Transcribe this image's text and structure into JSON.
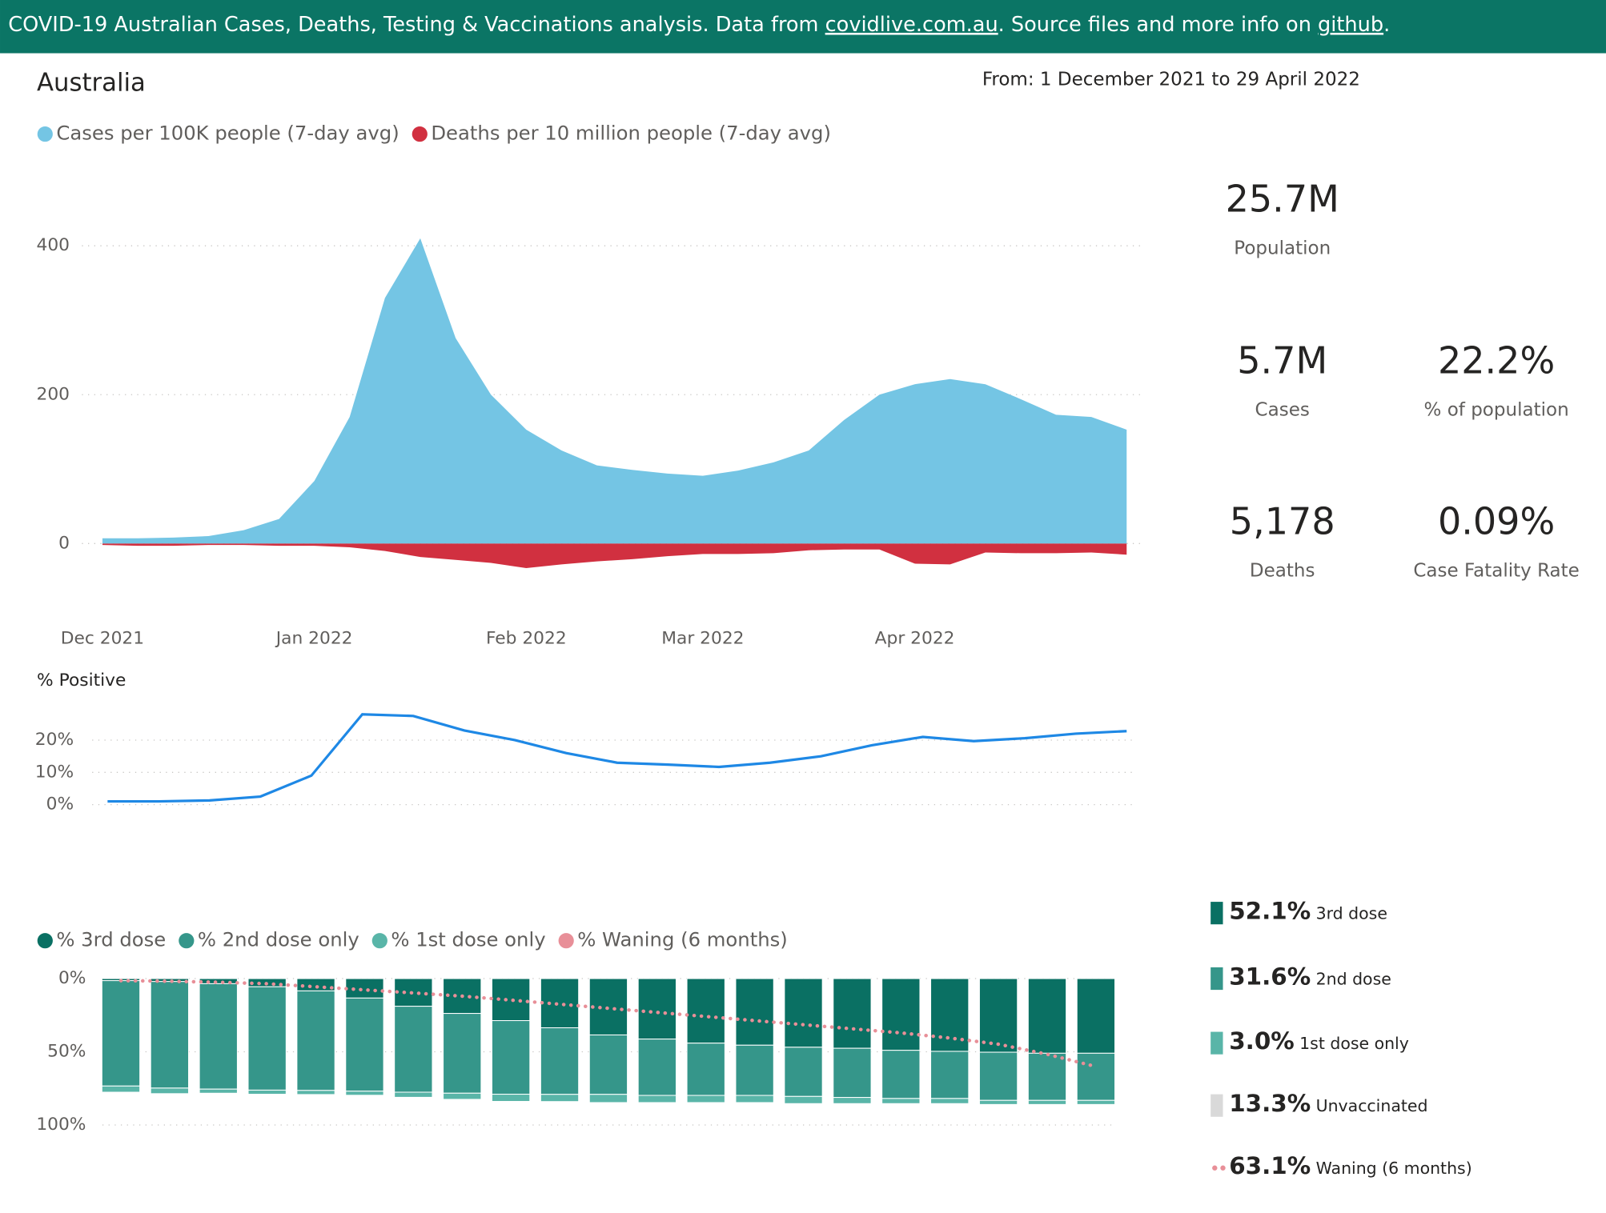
{
  "header": {
    "text_before": "COVID-19 Australian Cases, Deaths, Testing & Vaccinations analysis. Data from ",
    "link1": "covidlive.com.au",
    "text_middle": ". Source files and more info on ",
    "link2": "github",
    "text_after": "."
  },
  "dashboard": {
    "title": "Australia",
    "date_range": "From: 1 December 2021 to 29 April 2022"
  },
  "kpis": [
    {
      "value": "25.7M",
      "label": "Population"
    },
    {
      "value": "5.7M",
      "label": "Cases"
    },
    {
      "value": "22.2%",
      "label": "% of population"
    },
    {
      "value": "5,178",
      "label": "Deaths"
    },
    {
      "value": "0.09%",
      "label": "Case Fatality Rate"
    }
  ],
  "vaccination_summary": [
    {
      "value": "52.1%",
      "label": "3rd dose",
      "color": "#0a7063"
    },
    {
      "value": "31.6%",
      "label": "2nd dose",
      "color": "#35968a"
    },
    {
      "value": "3.0%",
      "label": "1st dose only",
      "color": "#59b5a8"
    },
    {
      "value": "13.3%",
      "label": "Unvaccinated",
      "color": "#d9d9d9"
    },
    {
      "value": "63.1%",
      "label": "Waning (6 months)",
      "color": "#e88f98"
    }
  ],
  "chart_data": [
    {
      "type": "area",
      "categories": [
        "Dec 2021",
        null,
        null,
        null,
        null,
        null,
        "Jan 2022",
        null,
        null,
        null,
        null,
        null,
        "Feb 2022",
        null,
        null,
        null,
        null,
        "Mar 2022",
        null,
        null,
        null,
        null,
        null,
        "Apr 2022",
        null,
        null,
        null,
        null,
        null,
        null
      ],
      "series": [
        {
          "name": "Cases per 100K people (7-day avg)",
          "color": "#74c5e4",
          "values": [
            7,
            7,
            8,
            10,
            18,
            33,
            84,
            170,
            330,
            410,
            276,
            200,
            153,
            125,
            105,
            99,
            94,
            91,
            98,
            109,
            125,
            166,
            200,
            214,
            221,
            214,
            194,
            173,
            170,
            153
          ]
        },
        {
          "name": "Deaths per 10 million people (7-day avg)",
          "color": "#d13040",
          "values": [
            -2,
            -3,
            -3,
            -2,
            -2,
            -3,
            -3,
            -5,
            -10,
            -18,
            -22,
            -26,
            -33,
            -28,
            -24,
            -21,
            -17,
            -14,
            -14,
            -13,
            -9,
            -8,
            -8,
            -27,
            -28,
            -12,
            -13,
            -13,
            -12,
            -15
          ]
        }
      ],
      "ylim": [
        -70,
        500
      ],
      "yticks": [
        0,
        200,
        400
      ],
      "grid": true
    },
    {
      "type": "line",
      "title": "% Positive",
      "color": "#1e88e5",
      "values": [
        1,
        1,
        1.3,
        2.5,
        9,
        28,
        27.5,
        23,
        20,
        16,
        13,
        12.4,
        11.7,
        13,
        15,
        18.4,
        21,
        19.7,
        20.6,
        22,
        22.8
      ],
      "ylim": [
        -3,
        31
      ],
      "yticks": [
        {
          "value": 0,
          "label": "0%"
        },
        {
          "value": 10,
          "label": "10%"
        },
        {
          "value": 20,
          "label": "20%"
        }
      ],
      "grid": true
    },
    {
      "type": "bar",
      "stacked": true,
      "y_inverted": true,
      "series": [
        {
          "name": "% 3rd dose",
          "color": "#0a7063",
          "values": [
            1.4,
            2,
            3.5,
            5.6,
            8.4,
            13.3,
            18.9,
            23.8,
            28.7,
            33.6,
            38.5,
            41.3,
            44.1,
            45.5,
            46.9,
            47.6,
            49,
            49.7,
            50.3,
            51,
            51
          ]
        },
        {
          "name": "% 2nd dose only",
          "color": "#35968a",
          "values": [
            72,
            72.8,
            72,
            70.6,
            68,
            63.6,
            58.7,
            54.5,
            50.3,
            45.5,
            40.6,
            38.5,
            35.7,
            34.3,
            33.6,
            33.6,
            32.9,
            32.2,
            32.9,
            32.2,
            32.2
          ]
        },
        {
          "name": "% 1st dose only",
          "color": "#59b5a8",
          "values": [
            4.2,
            3.8,
            2.8,
            2.8,
            2.8,
            2.8,
            3.5,
            4.2,
            4.9,
            4.9,
            5.6,
            4.9,
            4.9,
            4.9,
            4.9,
            4.2,
            3.5,
            3.5,
            2.8,
            2.8,
            2.8
          ]
        },
        {
          "name": "% Waning (6 months)",
          "color": "#e88f98",
          "kind": "line",
          "values": [
            1.4,
            1.8,
            2.5,
            3.5,
            5.6,
            7.7,
            9.8,
            12,
            14.7,
            17.5,
            20.3,
            23.1,
            25.9,
            28.7,
            31.5,
            34.3,
            37.1,
            40.6,
            44.8,
            51.7,
            60.1
          ]
        }
      ],
      "ylim": [
        0,
        100
      ],
      "yticks": [
        {
          "value": 0,
          "label": "0%"
        },
        {
          "value": 50,
          "label": "50%"
        },
        {
          "value": 100,
          "label": "100%"
        }
      ],
      "grid": true
    }
  ]
}
